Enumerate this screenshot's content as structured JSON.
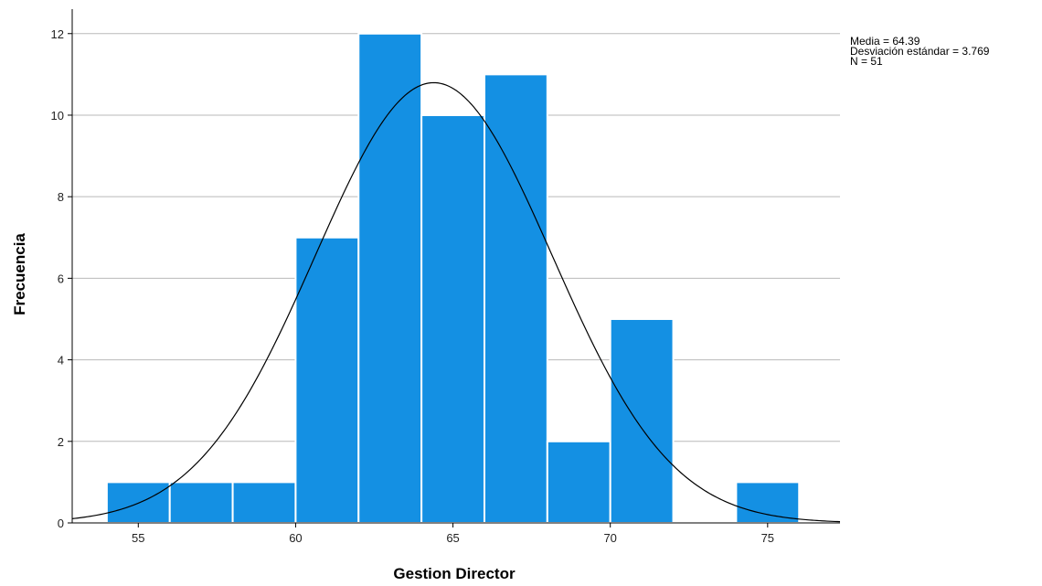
{
  "chart_data": {
    "type": "bar",
    "xlabel": "Gestion Director",
    "ylabel": "Frecuencia",
    "bin_edges": [
      54,
      56,
      58,
      60,
      62,
      64,
      66,
      68,
      70,
      72,
      74,
      76
    ],
    "values": [
      1,
      1,
      1,
      7,
      12,
      10,
      11,
      2,
      5,
      0,
      1
    ],
    "xlim": [
      52.9,
      77.3
    ],
    "ylim": [
      0,
      12.6
    ],
    "x_ticks": [
      55,
      60,
      65,
      70,
      75
    ],
    "y_ticks": [
      0,
      2,
      4,
      6,
      8,
      10,
      12
    ],
    "bar_color": "#1490e3",
    "normal_curve": {
      "mean": 64.39,
      "sd": 3.769,
      "n": 51,
      "bin_width": 2,
      "color": "#000000"
    },
    "grid": "horizontal",
    "annotations": [
      "Media = 64.39",
      "Desviación estándar = 3.769",
      "N = 51"
    ]
  }
}
